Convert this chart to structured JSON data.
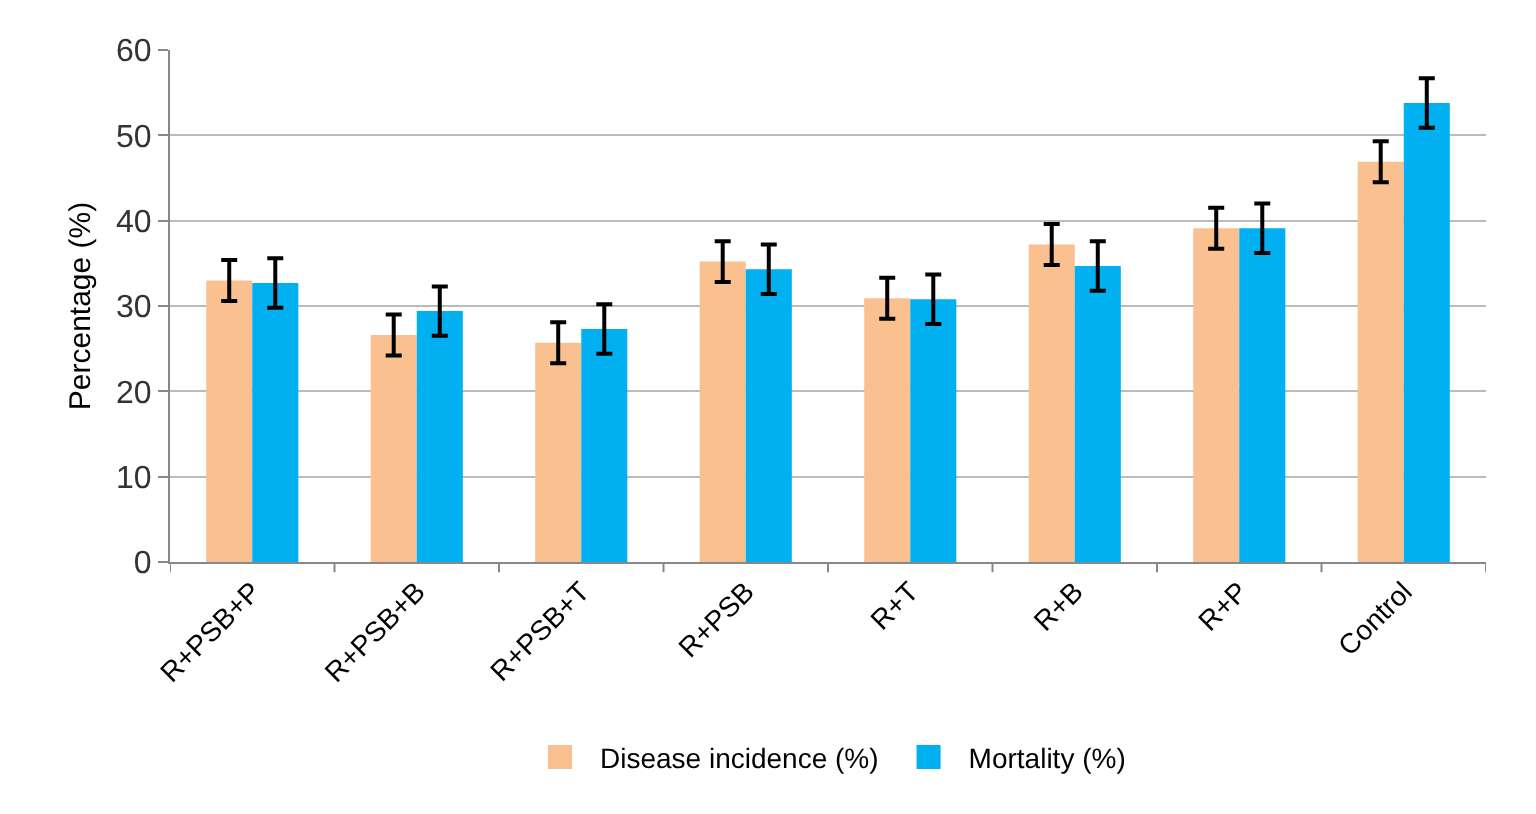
{
  "chart_data": {
    "type": "bar",
    "ylabel": "Percentage (%)",
    "categories": [
      "R+PSB+P",
      "R+PSB+B",
      "R+PSB+T",
      "R+PSB",
      "R+T",
      "R+B",
      "R+P",
      "Control"
    ],
    "series": [
      {
        "name": "Disease incidence (%)",
        "color": "#fac090",
        "values": [
          33.0,
          26.6,
          25.7,
          35.2,
          30.9,
          37.2,
          39.1,
          46.9
        ],
        "errors": [
          2.4,
          2.4,
          2.4,
          2.4,
          2.4,
          2.4,
          2.4,
          2.4
        ]
      },
      {
        "name": "Mortality (%)",
        "color": "#00b0f0",
        "values": [
          32.7,
          29.4,
          27.3,
          34.3,
          30.8,
          34.7,
          39.1,
          53.8
        ],
        "errors": [
          2.9,
          2.9,
          2.9,
          2.9,
          2.9,
          2.9,
          2.9,
          2.9
        ]
      }
    ],
    "ylim": [
      0,
      60
    ],
    "yticks": [
      0,
      10,
      20,
      30,
      40,
      50,
      60
    ],
    "grid": "y",
    "legend": "bottom"
  }
}
